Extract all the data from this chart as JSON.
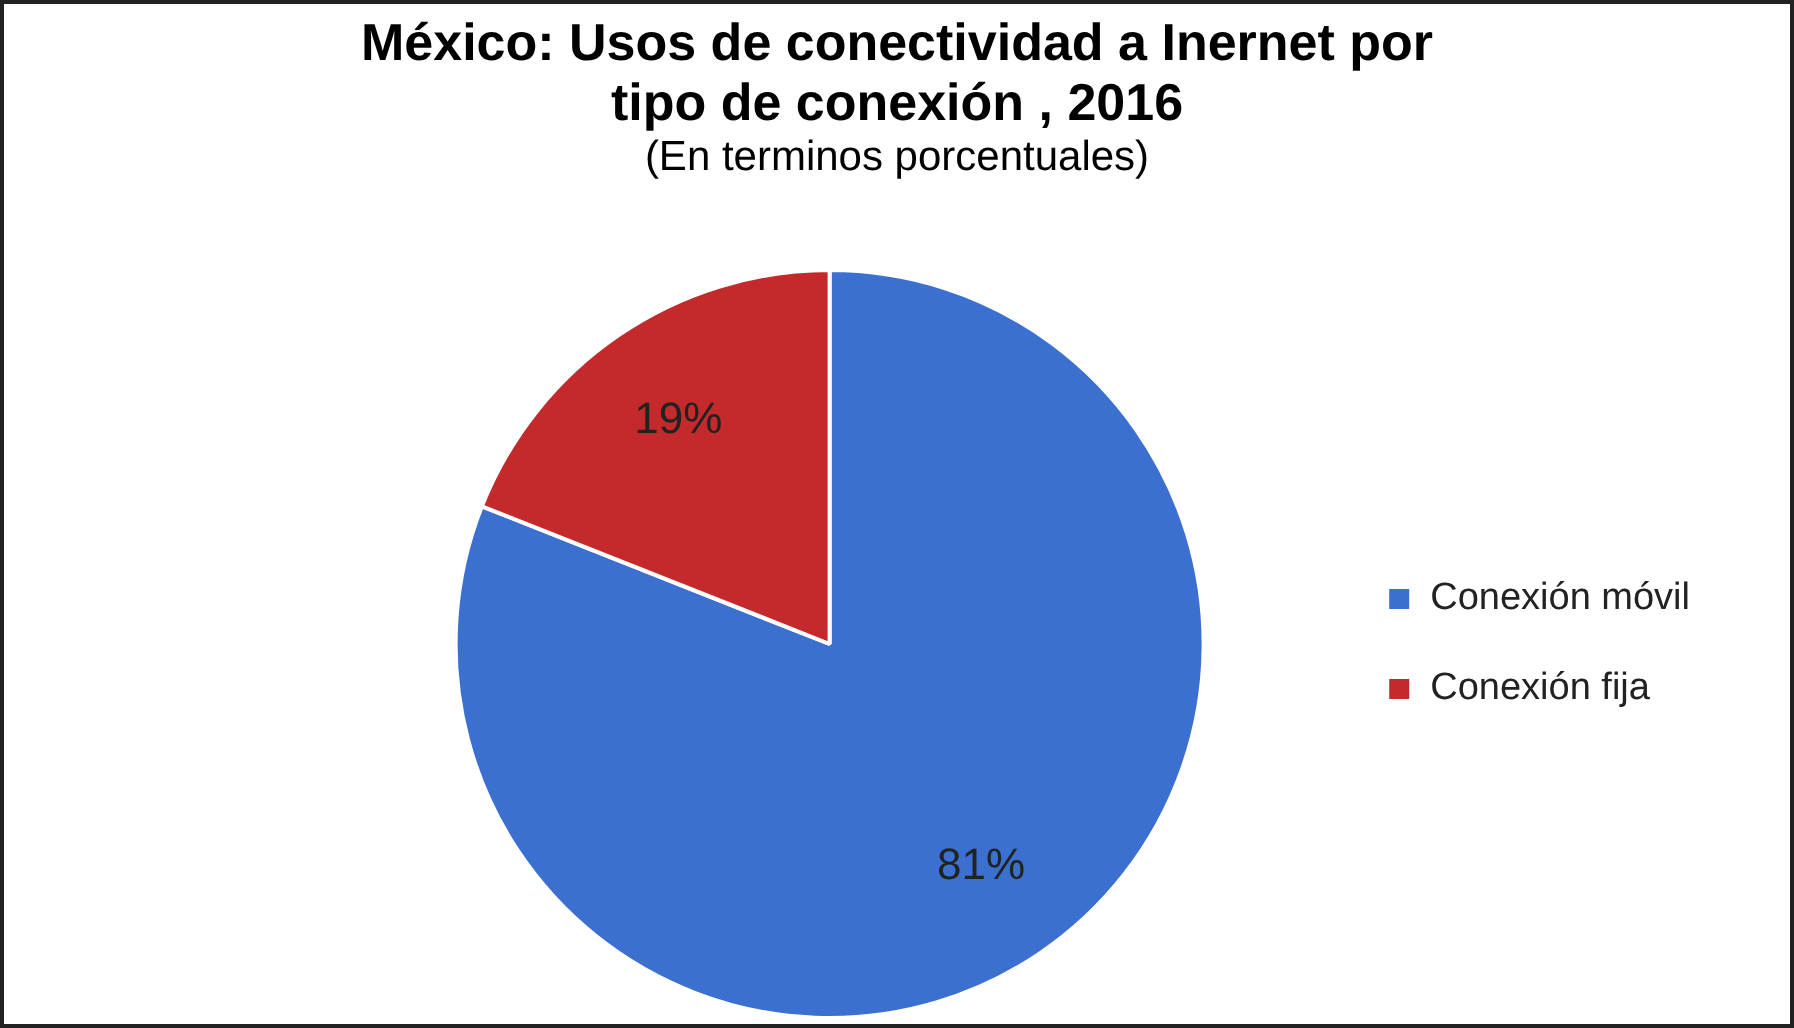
{
  "chart_data": {
    "type": "pie",
    "title": "México: Usos de conectividad a Inernet por tipo de conexión , 2016",
    "subtitle": "(En terminos porcentuales)",
    "categories": [
      "Conexión móvil",
      "Conexión fija"
    ],
    "values": [
      81,
      19
    ],
    "colors": [
      "#3b6fd0",
      "#c42a2c"
    ],
    "value_labels": [
      "81%",
      "19%"
    ],
    "legend": "right"
  }
}
